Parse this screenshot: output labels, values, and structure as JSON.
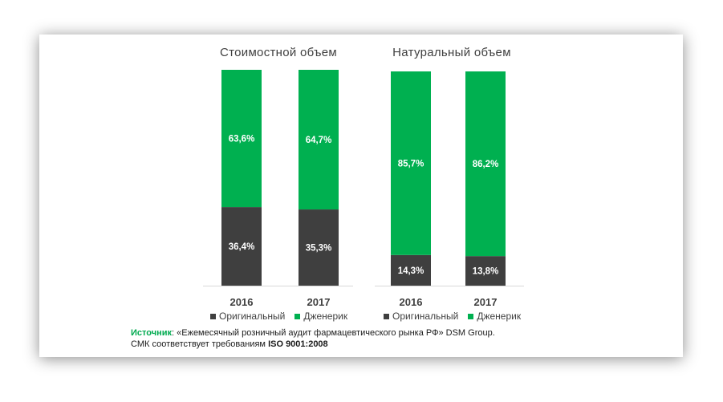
{
  "colors": {
    "original": "#3f3f3f",
    "generic": "#00b050",
    "source_label": "#00aa4f"
  },
  "legend": {
    "original": "Оригинальный",
    "generic": "Дженерик"
  },
  "source": {
    "label": "Источник",
    "text": ": «Ежемесячный розничный аудит фармацевтического рынка РФ» DSM Group.",
    "line2_prefix": "СМК соответствует требованиям ",
    "line2_bold": "ISO 9001:2008"
  },
  "chart_data": [
    {
      "type": "bar",
      "stacked": true,
      "percent": true,
      "title": "Стоимостной объем",
      "categories": [
        "2016",
        "2017"
      ],
      "series": [
        {
          "name": "Оригинальный",
          "values": [
            36.4,
            35.3
          ],
          "labels": [
            "36,4%",
            "35,3%"
          ]
        },
        {
          "name": "Дженерик",
          "values": [
            63.6,
            64.7
          ],
          "labels": [
            "63,6%",
            "64,7%"
          ]
        }
      ],
      "ylim": [
        0,
        100
      ],
      "grid": false,
      "legend": "bottom"
    },
    {
      "type": "bar",
      "stacked": true,
      "percent": true,
      "title": "Натуральный объем",
      "categories": [
        "2016",
        "2017"
      ],
      "series": [
        {
          "name": "Оригинальный",
          "values": [
            14.3,
            13.8
          ],
          "labels": [
            "14,3%",
            "13,8%"
          ]
        },
        {
          "name": "Дженерик",
          "values": [
            85.7,
            86.2
          ],
          "labels": [
            "85,7%",
            "86,2%"
          ]
        }
      ],
      "ylim": [
        0,
        100
      ],
      "grid": false,
      "legend": "bottom"
    }
  ]
}
